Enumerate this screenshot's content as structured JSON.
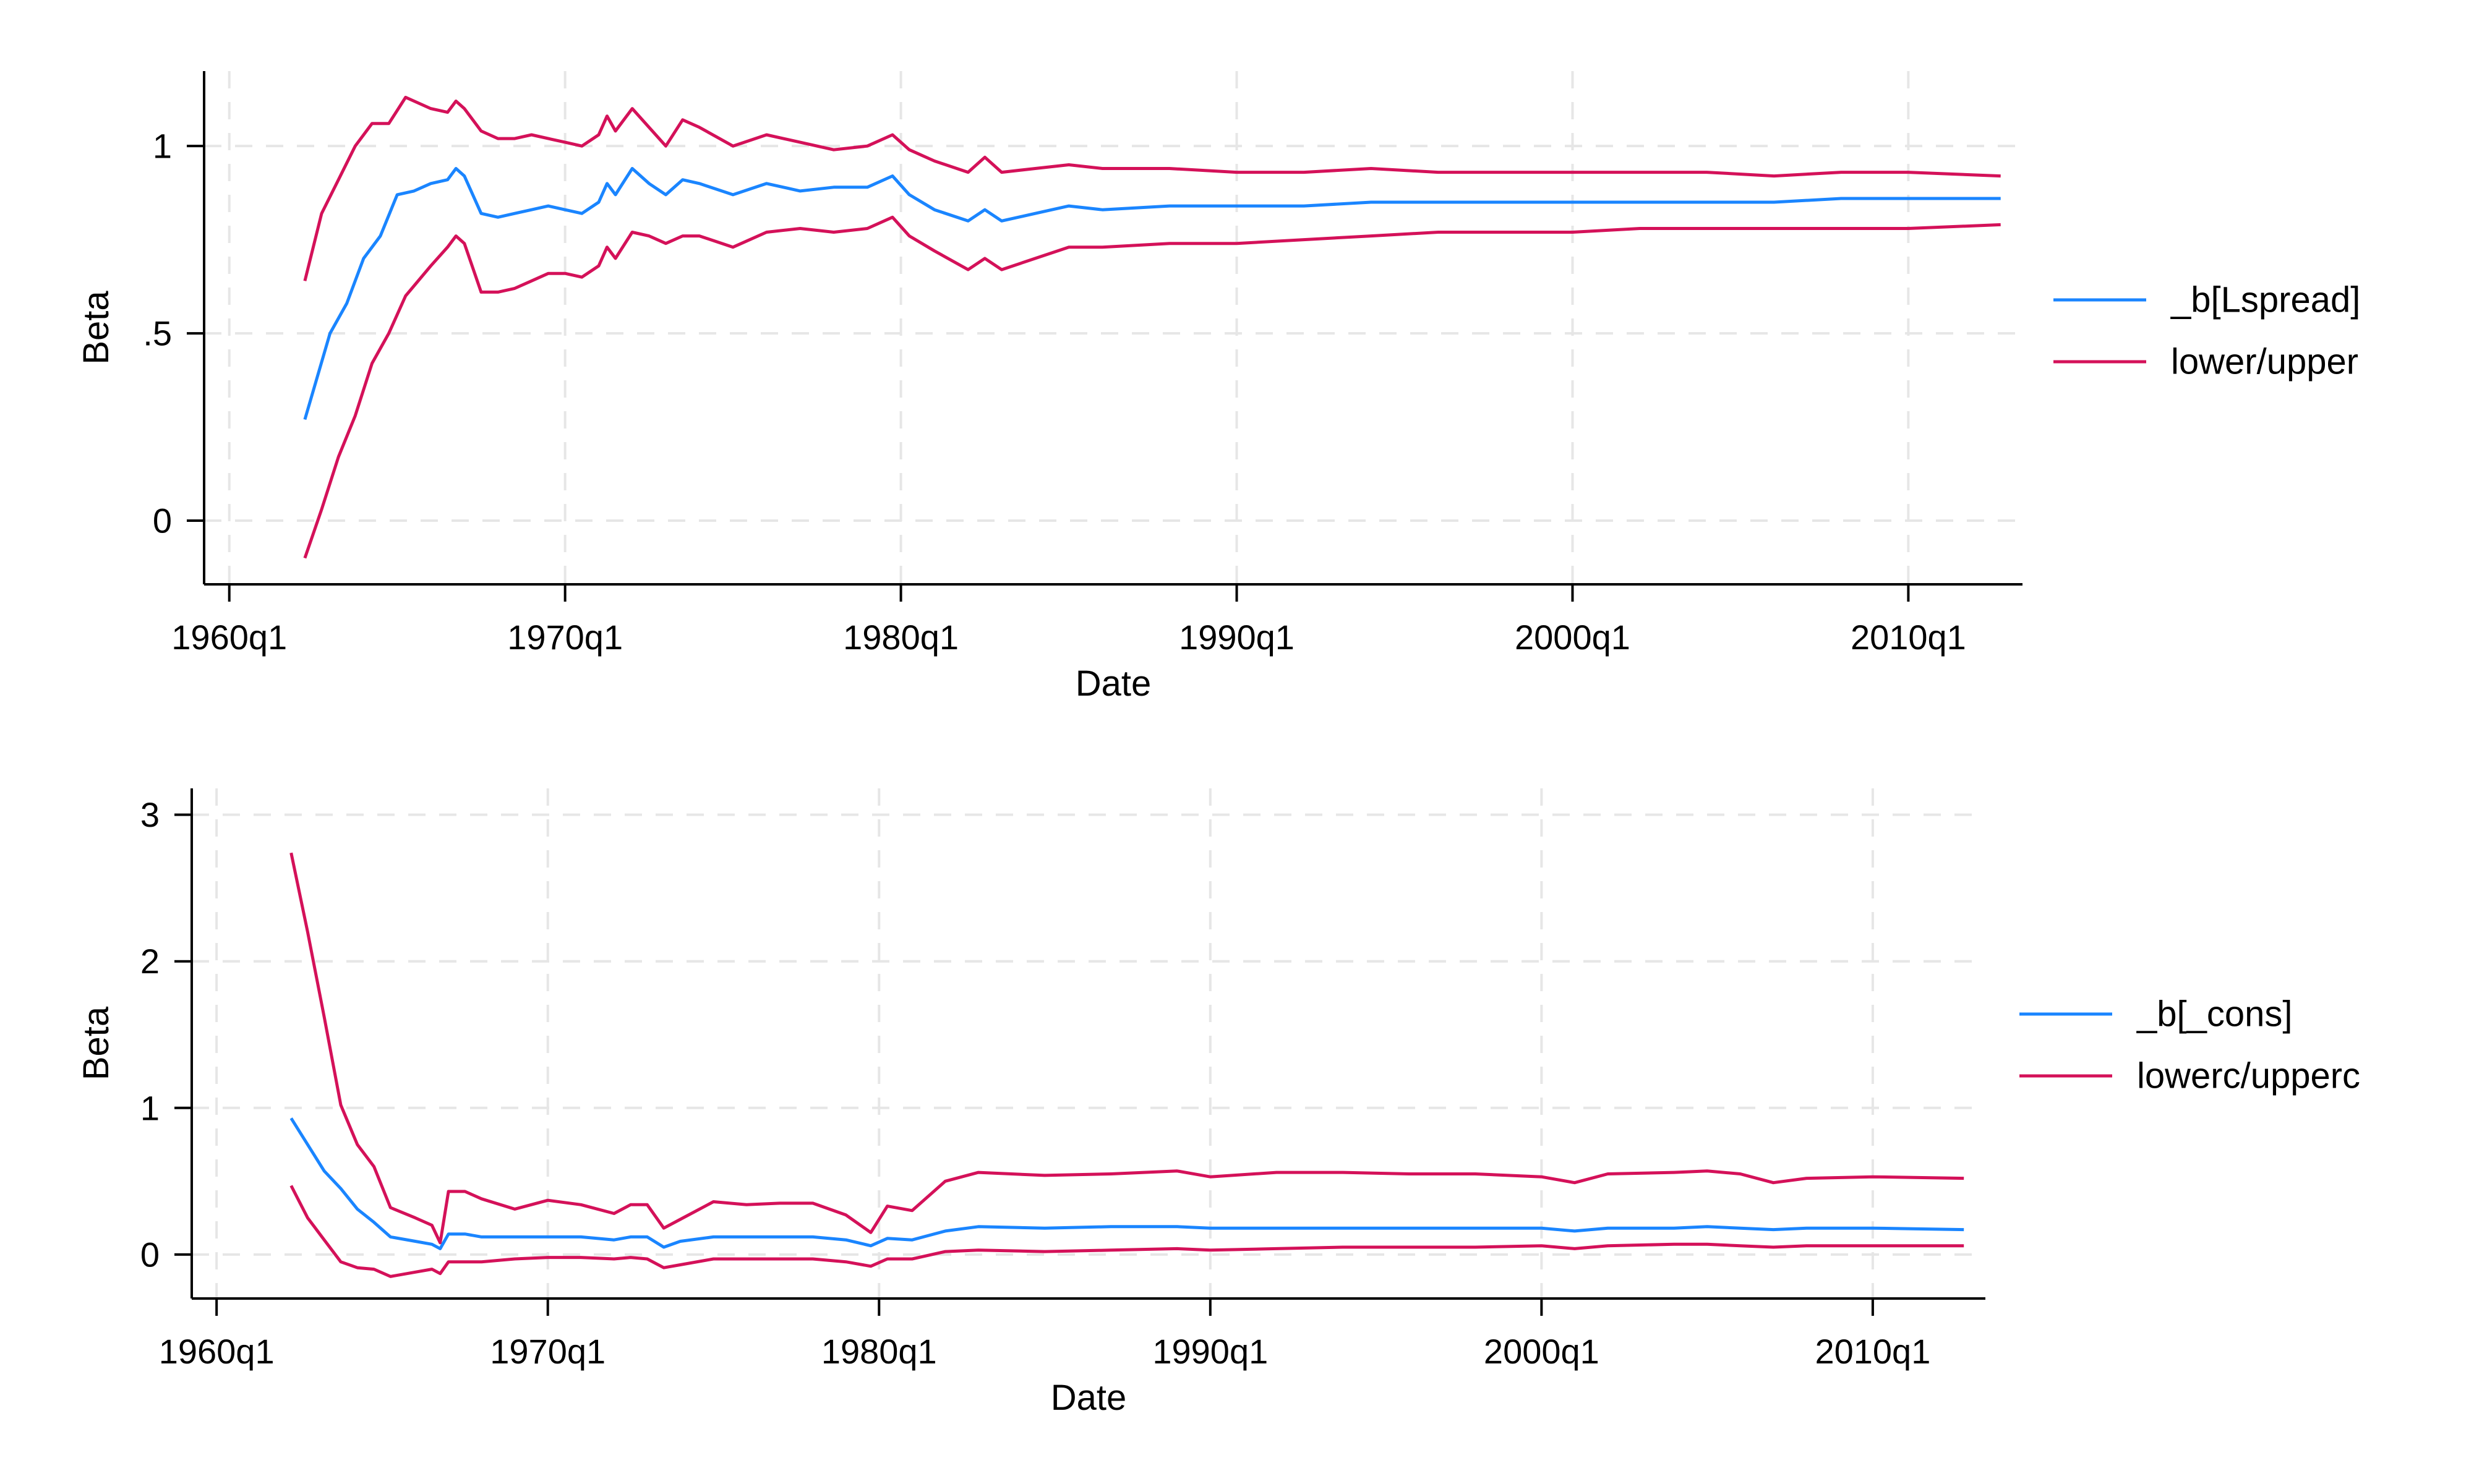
{
  "colors": {
    "estimate": "#1a85ff",
    "band": "#d41159",
    "grid": "#e6e6e6",
    "axis": "#000000"
  },
  "chart_data": [
    {
      "type": "line",
      "xlabel": "Date",
      "ylabel": "Beta",
      "x_tick_values": [
        1960,
        1970,
        1980,
        1990,
        2000,
        2010
      ],
      "x_tick_labels": [
        "1960q1",
        "1970q1",
        "1980q1",
        "1990q1",
        "2000q1",
        "2010q1"
      ],
      "y_tick_values": [
        0,
        0.5,
        1
      ],
      "y_tick_labels": [
        "0",
        ".5",
        "1"
      ],
      "xlim": [
        1959.25,
        2013.4
      ],
      "ylim": [
        -0.17,
        1.2
      ],
      "grid": true,
      "legend_position": "right",
      "legend": [
        {
          "label": "_b[Lspread]",
          "color": "#1a85ff"
        },
        {
          "label": "lower/upper",
          "color": "#d41159"
        }
      ],
      "series": [
        {
          "name": "_b[Lspread]",
          "color": "#1a85ff",
          "x": [
            1962.25,
            1963.0,
            1963.5,
            1964.0,
            1964.5,
            1965.0,
            1965.5,
            1966.0,
            1966.5,
            1966.75,
            1967.0,
            1967.5,
            1968.0,
            1968.5,
            1969.0,
            1969.5,
            1970.0,
            1970.5,
            1971.0,
            1971.25,
            1971.5,
            1972.0,
            1972.5,
            1973.0,
            1973.5,
            1974.0,
            1975.0,
            1976.0,
            1977.0,
            1978.0,
            1979.0,
            1979.75,
            1980.25,
            1981.0,
            1982.0,
            1982.5,
            1983.0,
            1984.0,
            1985.0,
            1986.0,
            1988.0,
            1990.0,
            1992.0,
            1994.0,
            1996.0,
            2000.0,
            2002.0,
            2004.0,
            2006.0,
            2008.0,
            2010.0,
            2012.75
          ],
          "y": [
            0.27,
            0.5,
            0.58,
            0.7,
            0.76,
            0.87,
            0.88,
            0.9,
            0.91,
            0.94,
            0.92,
            0.82,
            0.81,
            0.82,
            0.83,
            0.84,
            0.83,
            0.82,
            0.85,
            0.9,
            0.87,
            0.94,
            0.9,
            0.87,
            0.91,
            0.9,
            0.87,
            0.9,
            0.88,
            0.89,
            0.89,
            0.92,
            0.87,
            0.83,
            0.8,
            0.83,
            0.8,
            0.82,
            0.84,
            0.83,
            0.84,
            0.84,
            0.84,
            0.85,
            0.85,
            0.85,
            0.85,
            0.85,
            0.85,
            0.86,
            0.86,
            0.86
          ]
        },
        {
          "name": "",
          "color": "#d41159",
          "x": [
            1962.25,
            1962.75,
            1963.25,
            1963.75,
            1964.25,
            1964.75,
            1965.25,
            1966.0,
            1966.5,
            1966.75,
            1967.0,
            1967.5,
            1968.0,
            1968.5,
            1969.0,
            1969.5,
            1970.0,
            1970.5,
            1971.0,
            1971.25,
            1971.5,
            1972.0,
            1972.5,
            1973.0,
            1973.5,
            1974.0,
            1975.0,
            1976.0,
            1977.0,
            1978.0,
            1979.0,
            1979.75,
            1980.25,
            1981.0,
            1982.0,
            1982.5,
            1983.0,
            1984.0,
            1985.0,
            1986.0,
            1988.0,
            1990.0,
            1992.0,
            1994.0,
            1996.0,
            2000.0,
            2002.0,
            2004.0,
            2006.0,
            2008.0,
            2010.0,
            2012.75
          ],
          "y": [
            0.64,
            0.82,
            0.91,
            1.0,
            1.06,
            1.06,
            1.13,
            1.1,
            1.09,
            1.12,
            1.1,
            1.04,
            1.02,
            1.02,
            1.03,
            1.02,
            1.01,
            1.0,
            1.03,
            1.08,
            1.04,
            1.1,
            1.05,
            1.0,
            1.07,
            1.05,
            1.0,
            1.03,
            1.01,
            0.99,
            1.0,
            1.03,
            0.99,
            0.96,
            0.93,
            0.97,
            0.93,
            0.94,
            0.95,
            0.94,
            0.94,
            0.93,
            0.93,
            0.94,
            0.93,
            0.93,
            0.93,
            0.93,
            0.92,
            0.93,
            0.93,
            0.92
          ]
        },
        {
          "name": "",
          "color": "#d41159",
          "x": [
            1962.25,
            1962.75,
            1963.25,
            1963.75,
            1964.25,
            1964.75,
            1965.25,
            1966.0,
            1966.5,
            1966.75,
            1967.0,
            1967.5,
            1968.0,
            1968.5,
            1969.0,
            1969.5,
            1970.0,
            1970.5,
            1971.0,
            1971.25,
            1971.5,
            1972.0,
            1972.5,
            1973.0,
            1973.5,
            1974.0,
            1975.0,
            1976.0,
            1977.0,
            1978.0,
            1979.0,
            1979.75,
            1980.25,
            1981.0,
            1982.0,
            1982.5,
            1983.0,
            1984.0,
            1985.0,
            1986.0,
            1988.0,
            1990.0,
            1992.0,
            1994.0,
            1996.0,
            2000.0,
            2002.0,
            2004.0,
            2006.0,
            2008.0,
            2010.0,
            2012.75
          ],
          "y": [
            -0.1,
            0.03,
            0.17,
            0.28,
            0.42,
            0.5,
            0.6,
            0.68,
            0.73,
            0.76,
            0.74,
            0.61,
            0.61,
            0.62,
            0.64,
            0.66,
            0.66,
            0.65,
            0.68,
            0.73,
            0.7,
            0.77,
            0.76,
            0.74,
            0.76,
            0.76,
            0.73,
            0.77,
            0.78,
            0.77,
            0.78,
            0.81,
            0.76,
            0.72,
            0.67,
            0.7,
            0.67,
            0.7,
            0.73,
            0.73,
            0.74,
            0.74,
            0.75,
            0.76,
            0.77,
            0.77,
            0.78,
            0.78,
            0.78,
            0.78,
            0.78,
            0.79
          ]
        }
      ]
    },
    {
      "type": "line",
      "xlabel": "Date",
      "ylabel": "Beta",
      "x_tick_values": [
        1960,
        1970,
        1980,
        1990,
        2000,
        2010
      ],
      "x_tick_labels": [
        "1960q1",
        "1970q1",
        "1980q1",
        "1990q1",
        "2000q1",
        "2010q1"
      ],
      "y_tick_values": [
        0,
        1,
        2,
        3
      ],
      "y_tick_labels": [
        "0",
        "1",
        "2",
        "3"
      ],
      "xlim": [
        1959.25,
        2013.4
      ],
      "ylim": [
        -0.3,
        3.18
      ],
      "grid": true,
      "legend_position": "right",
      "legend": [
        {
          "label": "_b[_cons]",
          "color": "#1a85ff"
        },
        {
          "label": "lowerc/upperc",
          "color": "#d41159"
        }
      ],
      "series": [
        {
          "name": "_b[_cons]",
          "color": "#1a85ff",
          "x": [
            1962.25,
            1962.75,
            1963.25,
            1963.75,
            1964.25,
            1964.75,
            1965.25,
            1966.0,
            1966.5,
            1966.75,
            1967.0,
            1967.5,
            1968.0,
            1969.0,
            1970.0,
            1971.0,
            1972.0,
            1972.5,
            1973.0,
            1973.5,
            1974.0,
            1975.0,
            1976.0,
            1977.0,
            1978.0,
            1979.0,
            1979.75,
            1980.25,
            1981.0,
            1982.0,
            1983.0,
            1985.0,
            1987.0,
            1989.0,
            1990.0,
            1992.0,
            1994.0,
            1996.0,
            1998.0,
            2000.0,
            2001.0,
            2002.0,
            2004.0,
            2005.0,
            2006.0,
            2007.0,
            2008.0,
            2010.0,
            2012.75
          ],
          "y": [
            0.93,
            0.75,
            0.57,
            0.45,
            0.31,
            0.22,
            0.12,
            0.09,
            0.07,
            0.04,
            0.14,
            0.14,
            0.12,
            0.12,
            0.12,
            0.12,
            0.1,
            0.12,
            0.12,
            0.05,
            0.09,
            0.12,
            0.12,
            0.12,
            0.12,
            0.1,
            0.06,
            0.11,
            0.1,
            0.16,
            0.19,
            0.18,
            0.19,
            0.19,
            0.18,
            0.18,
            0.18,
            0.18,
            0.18,
            0.18,
            0.16,
            0.18,
            0.18,
            0.19,
            0.18,
            0.17,
            0.18,
            0.18,
            0.17
          ]
        },
        {
          "name": "",
          "color": "#d41159",
          "x": [
            1962.25,
            1962.75,
            1963.25,
            1963.75,
            1964.25,
            1964.75,
            1965.25,
            1966.0,
            1966.5,
            1966.75,
            1967.0,
            1967.5,
            1968.0,
            1969.0,
            1970.0,
            1971.0,
            1972.0,
            1972.5,
            1973.0,
            1973.5,
            1974.0,
            1975.0,
            1976.0,
            1977.0,
            1978.0,
            1979.0,
            1979.75,
            1980.25,
            1981.0,
            1982.0,
            1983.0,
            1985.0,
            1987.0,
            1989.0,
            1990.0,
            1992.0,
            1994.0,
            1996.0,
            1998.0,
            2000.0,
            2001.0,
            2002.0,
            2004.0,
            2005.0,
            2006.0,
            2007.0,
            2008.0,
            2010.0,
            2012.75
          ],
          "y": [
            2.74,
            2.2,
            1.62,
            1.02,
            0.75,
            0.6,
            0.32,
            0.25,
            0.2,
            0.08,
            0.43,
            0.43,
            0.38,
            0.31,
            0.37,
            0.34,
            0.28,
            0.34,
            0.34,
            0.18,
            0.24,
            0.36,
            0.34,
            0.35,
            0.35,
            0.27,
            0.15,
            0.33,
            0.3,
            0.5,
            0.56,
            0.54,
            0.55,
            0.57,
            0.53,
            0.56,
            0.56,
            0.55,
            0.55,
            0.53,
            0.49,
            0.55,
            0.56,
            0.57,
            0.55,
            0.49,
            0.52,
            0.53,
            0.52
          ]
        },
        {
          "name": "",
          "color": "#d41159",
          "x": [
            1962.25,
            1962.75,
            1963.25,
            1963.75,
            1964.25,
            1964.75,
            1965.25,
            1966.0,
            1966.5,
            1966.75,
            1967.0,
            1967.5,
            1968.0,
            1969.0,
            1970.0,
            1971.0,
            1972.0,
            1972.5,
            1973.0,
            1973.5,
            1974.0,
            1975.0,
            1976.0,
            1977.0,
            1978.0,
            1979.0,
            1979.75,
            1980.25,
            1981.0,
            1982.0,
            1983.0,
            1985.0,
            1987.0,
            1989.0,
            1990.0,
            1992.0,
            1994.0,
            1996.0,
            1998.0,
            2000.0,
            2001.0,
            2002.0,
            2004.0,
            2005.0,
            2006.0,
            2007.0,
            2008.0,
            2010.0,
            2012.75
          ],
          "y": [
            0.47,
            0.25,
            0.1,
            -0.05,
            -0.09,
            -0.1,
            -0.15,
            -0.12,
            -0.1,
            -0.13,
            -0.05,
            -0.05,
            -0.05,
            -0.03,
            -0.02,
            -0.02,
            -0.03,
            -0.02,
            -0.03,
            -0.09,
            -0.07,
            -0.03,
            -0.03,
            -0.03,
            -0.03,
            -0.05,
            -0.08,
            -0.03,
            -0.03,
            0.02,
            0.03,
            0.02,
            0.03,
            0.04,
            0.03,
            0.04,
            0.05,
            0.05,
            0.05,
            0.06,
            0.04,
            0.06,
            0.07,
            0.07,
            0.06,
            0.05,
            0.06,
            0.06,
            0.06
          ]
        }
      ]
    }
  ]
}
